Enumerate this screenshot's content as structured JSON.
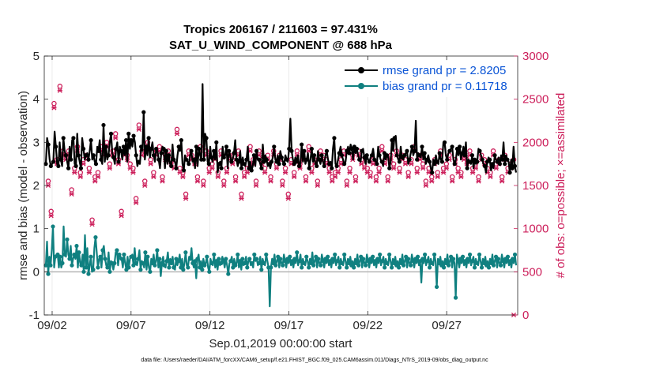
{
  "chart_data": {
    "type": "line",
    "title": "Tropics 206167 / 211603 = 97.431%",
    "subtitle": "SAT_U_WIND_COMPONENT @ 688 hPa",
    "xlabel": "Sep.01,2019 00:00:00 start",
    "ylabel": "rmse and bias (model - observation)",
    "y2label": "# of obs: o=possible; ×=assimilated",
    "footer": "data file: /Users/raeder/DAI/ATM_forcXX/CAM6_setup/f.e21.FHIST_BGC.f09_025.CAM6assim.011/Diags_NTrS_2019-09/obs_diag_output.nc",
    "xlim": [
      1.5,
      31.5
    ],
    "ylim": [
      -1,
      5
    ],
    "y2lim": [
      0,
      3000
    ],
    "x_ticks": [
      2,
      7,
      12,
      17,
      22,
      27
    ],
    "x_tick_labels": [
      "09/02",
      "09/07",
      "09/12",
      "09/17",
      "09/22",
      "09/27"
    ],
    "y_ticks": [
      -1,
      0,
      1,
      2,
      3,
      4,
      5
    ],
    "y_tick_labels": [
      "-1",
      "0",
      "1",
      "2",
      "3",
      "4",
      "5"
    ],
    "y2_ticks": [
      0,
      500,
      1000,
      1500,
      2000,
      2500,
      3000
    ],
    "y2_tick_labels": [
      "0",
      "500",
      "1000",
      "1500",
      "2000",
      "2500",
      "3000"
    ],
    "colors": {
      "rmse": "#000000",
      "bias": "#108080",
      "obs": "#cc1e5a",
      "legend_text": "#0b55d6",
      "zero": "#b4b4b4"
    },
    "series": [
      {
        "name": "rmse grand pr = 2.8205",
        "values": [
          2.5,
          3.1,
          2.95,
          2.6,
          2.45,
          2.5,
          2.55,
          3.25,
          2.9,
          2.5,
          2.45,
          3.0,
          2.6,
          2.45,
          3.1,
          2.8,
          2.7,
          2.55,
          2.4,
          2.9,
          2.6,
          3.05,
          3.1,
          2.5,
          2.45,
          3.2,
          2.7,
          2.55,
          2.4,
          3.1,
          2.85,
          2.6,
          2.7,
          2.75,
          2.6,
          2.8,
          3.05,
          2.6,
          2.7,
          2.55,
          2.5,
          2.9,
          2.8,
          3.05,
          2.6,
          2.5,
          3.4,
          2.55,
          2.9,
          2.6,
          2.7,
          3.0,
          3.2,
          2.75,
          2.65,
          2.5,
          2.85,
          3.0,
          2.55,
          2.9,
          2.8,
          2.6,
          2.9,
          2.7,
          3.05,
          2.55,
          3.2,
          2.85,
          3.05,
          2.9,
          3.15,
          3.0,
          2.7,
          2.45,
          2.55,
          2.5,
          2.9,
          2.8,
          3.7,
          2.6,
          2.9,
          2.7,
          3.1,
          2.65,
          2.85,
          3.0,
          2.7,
          2.55,
          2.85,
          2.8,
          2.6,
          2.4,
          2.75,
          2.9,
          2.85,
          2.4,
          2.8,
          2.5,
          2.7,
          2.5,
          2.45,
          2.95,
          2.6,
          2.55,
          2.4,
          2.7,
          2.9,
          2.8,
          3.05,
          2.5,
          2.35,
          2.7,
          2.6,
          2.55,
          2.5,
          2.7,
          2.8,
          2.55,
          2.6,
          2.4,
          2.9,
          2.45,
          2.85,
          2.7,
          2.6,
          4.35,
          2.6,
          3.2,
          3.1,
          2.55,
          2.5,
          2.9,
          2.65,
          2.55,
          2.8,
          2.6,
          3.0,
          2.3,
          2.5,
          2.55,
          2.4,
          2.9,
          2.65,
          2.7,
          2.9,
          2.4,
          2.8,
          2.7,
          2.55,
          2.6,
          2.75,
          3.05,
          2.6,
          2.45,
          2.55,
          2.8,
          2.4,
          2.65,
          2.5,
          2.45,
          2.6,
          2.9,
          2.4,
          2.55,
          2.35,
          2.45,
          2.7,
          2.45,
          2.8,
          2.6,
          2.6,
          2.5,
          2.4,
          2.95,
          2.55,
          2.7,
          2.6,
          2.45,
          2.5,
          2.4,
          2.55,
          2.65,
          2.9,
          2.6,
          2.55,
          2.7,
          2.5,
          2.8,
          2.65,
          2.55,
          2.5,
          2.7,
          2.6,
          2.55,
          2.85,
          3.55,
          2.8,
          2.6,
          2.5,
          2.65,
          2.55,
          2.7,
          2.45,
          2.5,
          2.95,
          2.55,
          2.8,
          2.5,
          2.6,
          2.75,
          2.4,
          2.6,
          2.85,
          2.55,
          2.7,
          2.5,
          2.45,
          2.8,
          2.6,
          2.5,
          2.7,
          2.55,
          2.45,
          2.7,
          2.8,
          2.6,
          2.5,
          2.55,
          2.4,
          2.85,
          3.1,
          2.5,
          2.45,
          2.6,
          2.75,
          2.9,
          2.7,
          2.6,
          2.5,
          2.55,
          2.8,
          2.9,
          2.75,
          2.95,
          2.85,
          2.6,
          2.9,
          2.75,
          2.85,
          2.7,
          2.6,
          2.55,
          2.8,
          2.85,
          2.65,
          2.5,
          2.7,
          2.6,
          2.55,
          2.65,
          2.7,
          2.85,
          2.6,
          2.55,
          2.5,
          2.9,
          2.7,
          2.6,
          2.55,
          2.45,
          2.75,
          2.6,
          2.7,
          2.65,
          2.4,
          2.55,
          3.05,
          2.8,
          3.1,
          3.15,
          2.7,
          2.6,
          2.55,
          2.9,
          2.65,
          2.6,
          2.7,
          2.75,
          2.8,
          2.5,
          2.6,
          2.75,
          2.9,
          2.7,
          2.8,
          3.5,
          2.6,
          2.75,
          2.7,
          2.65,
          2.9,
          2.6,
          2.75,
          2.5,
          2.6,
          2.7,
          2.55,
          2.4,
          2.3,
          2.6,
          2.5,
          2.7,
          2.55,
          2.5,
          2.75,
          2.6,
          2.55,
          3.0,
          3.0,
          2.7,
          2.6,
          2.75,
          2.8,
          2.85,
          2.9,
          2.6,
          2.5,
          2.6,
          2.85,
          2.7,
          2.9,
          2.6,
          2.75,
          2.9,
          2.7,
          3.0,
          2.4,
          2.6,
          2.55,
          2.5,
          2.7,
          2.4,
          2.6,
          2.5,
          2.55,
          2.85,
          2.8,
          2.7,
          2.6,
          2.5,
          2.45,
          2.3,
          2.55,
          2.65,
          2.6,
          2.35,
          2.5,
          2.4,
          2.7,
          2.6,
          2.55,
          2.65,
          2.5,
          2.7,
          2.6,
          3.0,
          2.5,
          2.7,
          2.6,
          2.55,
          2.3,
          2.6,
          2.4,
          2.9,
          2.45,
          2.3
        ],
        "color": "#000000"
      },
      {
        "name": "bias grand pr = 0.11718",
        "values": [
          0.15,
          0.7,
          -0.05,
          0.35,
          0.15,
          0.5,
          1.05,
          0.1,
          0.35,
          0.4,
          0.4,
          0.1,
          0.35,
          0.1,
          0.2,
          1.05,
          0.4,
          0.35,
          0.75,
          0.4,
          0.3,
          0.6,
          0.15,
          0.3,
          0.4,
          0.3,
          0.6,
          0.1,
          0.45,
          0.2,
          0.15,
          0.4,
          0.0,
          0.85,
          0.1,
          0.55,
          -0.05,
          0.15,
          0.35,
          0.0,
          0.05,
          0.55,
          0.8,
          0.45,
          0.1,
          0.3,
          0.35,
          0.1,
          0.5,
          0.6,
          0.3,
          0.15,
          0.1,
          0.45,
          0.0,
          0.25,
          0.2,
          0.05,
          0.2,
          0.45,
          0.5,
          0.15,
          0.4,
          0.35,
          0.3,
          0.1,
          0.4,
          0.2,
          0.05,
          0.35,
          0.1,
          0.3,
          0.35,
          0.4,
          0.15,
          0.55,
          0.2,
          0.15,
          0.3,
          0.5,
          0.05,
          0.25,
          0.2,
          0.1,
          0.45,
          0.05,
          0.35,
          0.1,
          0.0,
          0.3,
          0.2,
          0.4,
          0.15,
          0.25,
          0.5,
          0.1,
          0.3,
          -0.1,
          0.2,
          0.35,
          0.15,
          0.1,
          0.25,
          0.45,
          0.1,
          0.3,
          0.2,
          0.35,
          0.1,
          0.05,
          0.3,
          0.15,
          0.25,
          0.4,
          0.1,
          0.3,
          0.05,
          0.2,
          0.45,
          0.15,
          0.1,
          0.35,
          0.3,
          0.55,
          0.2,
          0.1,
          0.25,
          -0.15,
          0.3,
          0.4,
          0.1,
          0.25,
          0.05,
          0.3,
          0.15,
          0.2,
          0.35,
          0.1,
          0.0,
          0.3,
          0.2,
          0.15,
          0.4,
          0.1,
          0.25,
          0.05,
          0.3,
          0.15,
          0.2,
          0.35,
          0.25,
          0.1,
          0.3,
          0.15,
          -0.05,
          0.2,
          0.25,
          0.35,
          0.1,
          0.3,
          0.15,
          0.2,
          0.4,
          0.1,
          0.25,
          0.05,
          0.3,
          0.15,
          0.2,
          0.35,
          0.1,
          0.25,
          0.3,
          0.15,
          0.2,
          0.1,
          0.4,
          0.25,
          0.3,
          0.15,
          0.2,
          0.35,
          0.05,
          0.3,
          0.2,
          0.15,
          0.4,
          0.25,
          0.1,
          -0.8,
          0.1,
          0.3,
          0.2,
          0.4,
          0.15,
          0.25,
          0.35,
          0.1,
          0.3,
          0.2,
          0.15,
          0.4,
          0.25,
          0.1,
          0.3,
          0.2,
          0.35,
          0.15,
          0.25,
          0.1,
          0.3,
          0.2,
          0.45,
          0.15,
          0.25,
          0.4,
          0.1,
          0.3,
          0.2,
          0.15,
          0.35,
          0.25,
          0.1,
          0.3,
          0.2,
          0.45,
          0.15,
          0.25,
          0.35,
          0.1,
          0.3,
          0.2,
          0.15,
          0.4,
          0.25,
          0.1,
          0.3,
          0.2,
          0.35,
          0.15,
          0.25,
          0.1,
          0.3,
          0.2,
          0.4,
          0.15,
          0.25,
          0.35,
          0.1,
          0.3,
          0.2,
          0.15,
          0.4,
          0.25,
          0.1,
          0.3,
          0.2,
          0.35,
          0.15,
          0.25,
          0.1,
          0.3,
          0.2,
          0.4,
          0.15,
          0.25,
          0.35,
          0.1,
          0.3,
          0.2,
          0.15,
          0.4,
          0.25,
          0.1,
          0.3,
          0.2,
          0.35,
          0.15,
          0.25,
          0.1,
          0.3,
          0.2,
          0.4,
          0.15,
          0.25,
          0.35,
          0.1,
          0.3,
          0.2,
          0.15,
          0.4,
          0.25,
          0.1,
          0.3,
          0.2,
          0.35,
          0.15,
          0.25,
          0.1,
          0.3,
          0.2,
          0.4,
          0.15,
          0.25,
          0.35,
          0.1,
          0.3,
          0.2,
          0.15,
          0.4,
          0.25,
          0.1,
          0.3,
          0.2,
          0.35,
          0.15,
          0.25,
          -0.25,
          0.3,
          0.2,
          0.4,
          0.15,
          0.25,
          0.35,
          0.1,
          0.3,
          0.2,
          0.15,
          0.4,
          0.25,
          -0.35,
          0.3,
          0.2,
          0.35,
          0.15,
          0.25,
          0.1,
          0.3,
          0.2,
          0.4,
          0.15,
          0.25,
          0.35,
          0.1,
          0.3,
          0.2,
          -0.6,
          0.4,
          0.25,
          0.1,
          0.3,
          0.2,
          0.35,
          0.15,
          0.25,
          0.1,
          0.3,
          0.2,
          0.4,
          0.15,
          0.25,
          0.35,
          0.1,
          0.3,
          0.2,
          0.15,
          0.4,
          0.25,
          0.1,
          0.3,
          0.2,
          0.35,
          0.15,
          0.25,
          0.1,
          0.3,
          0.2,
          0.4,
          0.15,
          0.25,
          0.35,
          0.1,
          0.3,
          0.2,
          0.15,
          0.4,
          0.25,
          0.1,
          0.3,
          0.2,
          0.35,
          0.15,
          0.25,
          0.1,
          0.3,
          0.2,
          0.4,
          0.15
        ],
        "color": "#108080"
      }
    ],
    "obs_series": [
      {
        "name": "possible",
        "marker": "o",
        "values": [
          1550,
          1200,
          2450,
          1800,
          2650,
          1900,
          1850,
          1900,
          1450,
          1700,
          1950,
          1650,
          1800,
          1850,
          1700,
          1100,
          1600,
          1650,
          1950,
          1900,
          2000,
          1750,
          1900,
          2100,
          1800,
          1200,
          1900,
          1850,
          1750,
          1700,
          1350,
          2200,
          1900,
          1550,
          2000,
          1800,
          1650,
          1900,
          1950,
          1600,
          1850,
          1900,
          1800,
          1750,
          2150,
          1700,
          1650,
          1400,
          1900,
          1850,
          1800,
          1600,
          1950,
          1550,
          1900,
          1700,
          1750,
          1850,
          1650,
          1900,
          1550,
          1700,
          1850,
          1800,
          1600,
          1900,
          1400,
          1650,
          1700,
          1950,
          1800,
          1550,
          1900,
          1800,
          1700,
          1850,
          1600,
          1900,
          1750,
          1850,
          1550,
          1700,
          1400,
          1800,
          1650,
          1900,
          1750,
          1850,
          1600,
          1950,
          1700,
          1800,
          1550,
          1900,
          1850,
          1800,
          1700,
          1600,
          1650,
          1700,
          1800,
          1900,
          1550,
          1700,
          1850,
          1600,
          1900,
          1800,
          1750,
          1700,
          1650,
          1800,
          1600,
          1700,
          1950,
          1800,
          1600,
          1850,
          1750,
          1900,
          1700,
          1850,
          1800,
          1650,
          1800,
          1950,
          1700,
          1850,
          1750,
          1550,
          1700,
          1600,
          1800,
          1650,
          1900,
          1700,
          1750,
          1850,
          1600,
          1800,
          1700,
          1650,
          1850,
          1800,
          1900,
          1700,
          1750,
          1600,
          1850,
          1800,
          1700,
          1650,
          1900,
          1750,
          1800,
          1600,
          1850,
          1700,
          1750,
          1800
        ],
        "color": "#cc1e5a"
      },
      {
        "name": "assimilated",
        "marker": "x",
        "values": [
          1500,
          1150,
          2400,
          1750,
          2600,
          1850,
          1800,
          1850,
          1400,
          1650,
          1900,
          1600,
          1750,
          1800,
          1650,
          1050,
          1550,
          1600,
          1900,
          1850,
          1950,
          1700,
          1850,
          2050,
          1750,
          1150,
          1850,
          1800,
          1700,
          1650,
          1300,
          2150,
          1850,
          1500,
          1950,
          1750,
          1600,
          1850,
          1900,
          1550,
          1800,
          1850,
          1750,
          1700,
          2100,
          1650,
          1600,
          1350,
          1850,
          1800,
          1750,
          1550,
          1900,
          1500,
          1850,
          1650,
          1700,
          1800,
          1600,
          1850,
          1500,
          1650,
          1800,
          1750,
          1550,
          1850,
          1350,
          1600,
          1650,
          1900,
          1750,
          1500,
          1850,
          1750,
          1650,
          1800,
          1550,
          1850,
          1700,
          1800,
          1500,
          1650,
          1350,
          1750,
          1600,
          1850,
          1700,
          1800,
          1550,
          1900,
          1650,
          1750,
          1500,
          1850,
          1800,
          1750,
          1650,
          1550,
          1600,
          1650,
          1750,
          1850,
          1500,
          1650,
          1800,
          1550,
          1850,
          1750,
          1700,
          1650,
          1600,
          1750,
          1550,
          1650,
          1900,
          1750,
          1550,
          1800,
          1700,
          1850,
          1650,
          1800,
          1750,
          1600,
          1750,
          1900,
          1650,
          1800,
          1700,
          1500,
          1650,
          1550,
          1750,
          1600,
          1850,
          1650,
          1700,
          1800,
          1550,
          1750,
          1650,
          1600,
          1800,
          1750,
          1850,
          1650,
          1700,
          1550,
          1800,
          1750,
          1650,
          1600,
          1850,
          1700,
          1750,
          1550,
          1800,
          1650,
          1700,
          0
        ],
        "color": "#cc1e5a"
      }
    ]
  }
}
